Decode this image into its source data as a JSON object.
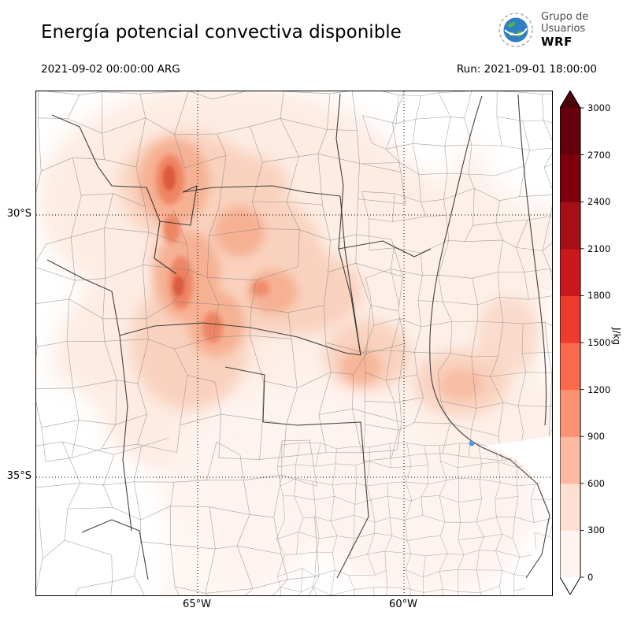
{
  "header": {
    "title": "Energía potencial convectiva disponible",
    "valid_time": "2021-09-02 00:00:00 ARG",
    "run_label": "Run: 2021-09-01 18:00:00",
    "logo": {
      "line1": "Grupo de",
      "line2": "Usuarios",
      "line3": "WRF"
    }
  },
  "map": {
    "y_axis_labels": [
      "30°S",
      "35°S"
    ],
    "x_axis_labels": [
      "65°W",
      "60°W"
    ]
  },
  "chart_data": {
    "type": "heatmap",
    "title": "Energía potencial convectiva disponible",
    "valid_time": "2021-09-02 00:00:00 ARG",
    "run": "2021-09-01 18:00:00",
    "colorbar": {
      "unit": "J/kg",
      "ticks": [
        0,
        300,
        600,
        900,
        1200,
        1500,
        1800,
        2100,
        2400,
        2700,
        3000
      ],
      "colors": [
        "#fff5f0",
        "#fee0d2",
        "#fcbba1",
        "#fc9272",
        "#fb6a4a",
        "#ef3b2c",
        "#cb181d",
        "#a50f15",
        "#7f000d",
        "#67000d"
      ],
      "extend_over_color": "#4c000a",
      "extend_under_color": "#ffffff",
      "orientation": "vertical-right"
    },
    "gridlines": {
      "lat": [
        "30°S",
        "35°S"
      ],
      "lon": [
        "65°W",
        "60°W"
      ],
      "style": "dotted"
    },
    "observed_value_range": [
      0,
      1500
    ],
    "shading_colormap": "Reds"
  }
}
